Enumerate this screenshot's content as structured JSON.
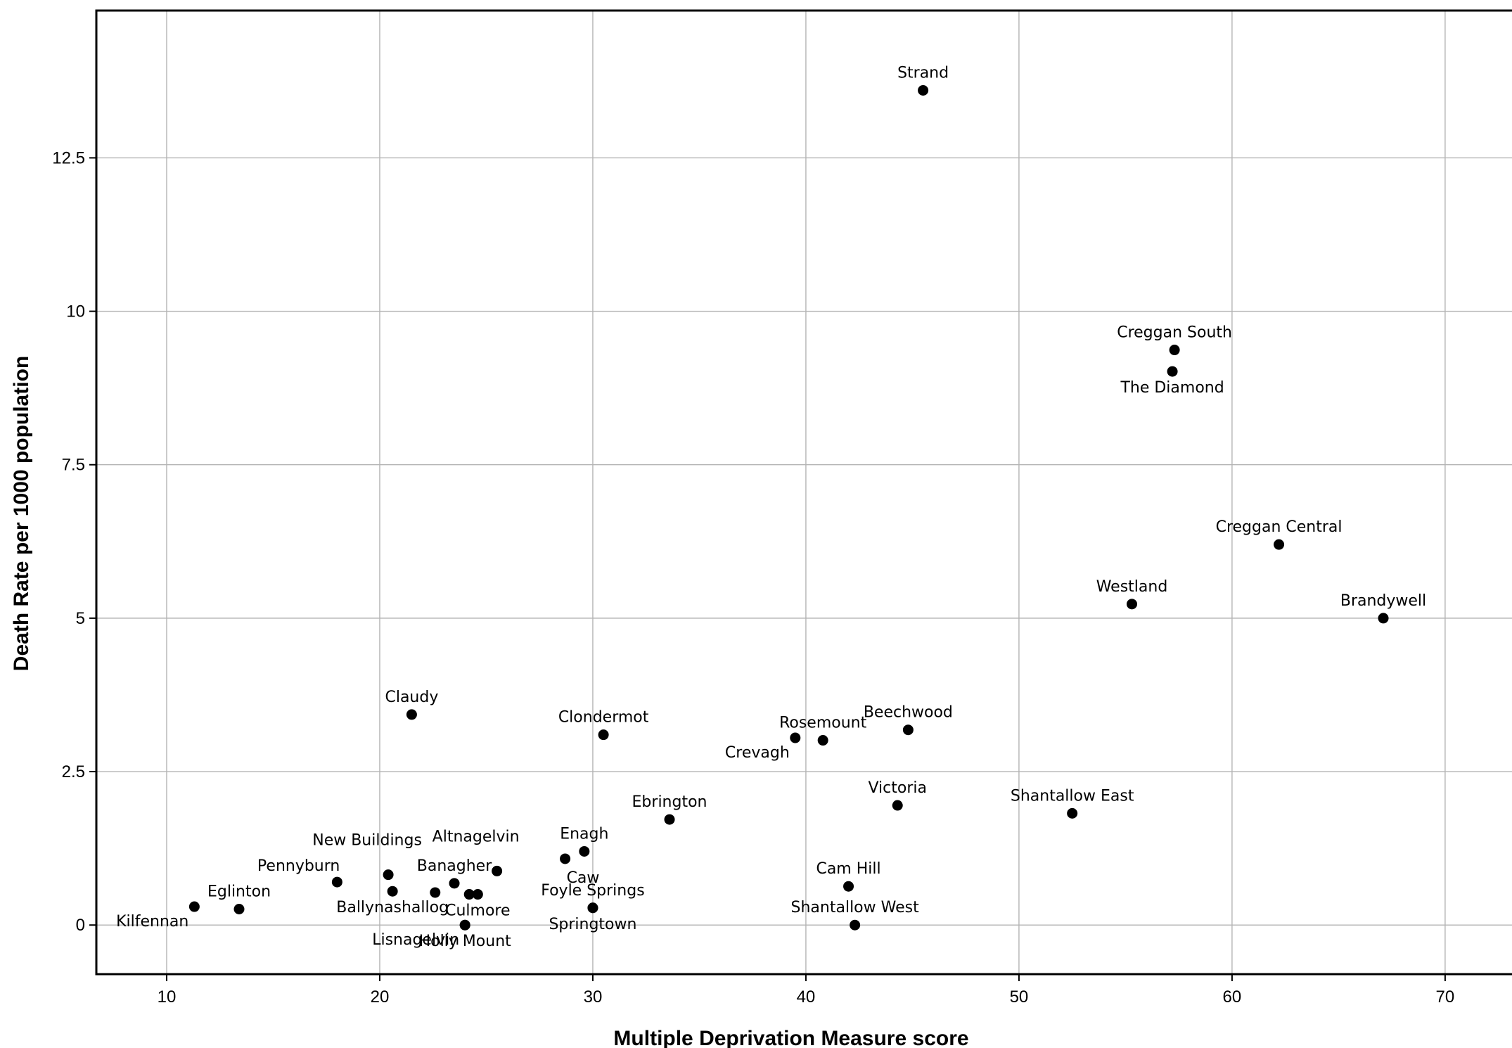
{
  "chart_data": {
    "type": "scatter",
    "xlabel": "Multiple Deprivation Measure score",
    "ylabel": "Death Rate per 1000 population",
    "xlim": [
      6.7,
      73.7
    ],
    "ylim": [
      -0.8,
      14.9
    ],
    "x_ticks": [
      10,
      20,
      30,
      40,
      50,
      60,
      70
    ],
    "y_ticks": [
      0,
      2.5,
      5,
      7.5,
      10,
      12.5
    ],
    "y_tick_labels": [
      "0",
      "2.5",
      "5",
      "7.5",
      "10",
      "12.5"
    ],
    "grid": true,
    "points": [
      {
        "label": "Strand",
        "x": 45.5,
        "y": 13.6,
        "pos": "above"
      },
      {
        "label": "Creggan South",
        "x": 57.3,
        "y": 9.37,
        "pos": "above"
      },
      {
        "label": "The Diamond",
        "x": 57.2,
        "y": 9.02,
        "pos": "below"
      },
      {
        "label": "Creggan Central",
        "x": 62.2,
        "y": 6.2,
        "pos": "above"
      },
      {
        "label": "Westland",
        "x": 55.3,
        "y": 5.23,
        "pos": "above"
      },
      {
        "label": "Brandywell",
        "x": 67.1,
        "y": 5.0,
        "pos": "above"
      },
      {
        "label": "Claudy",
        "x": 21.5,
        "y": 3.43,
        "pos": "above"
      },
      {
        "label": "Clondermot",
        "x": 30.5,
        "y": 3.1,
        "pos": "above"
      },
      {
        "label": "Crevagh",
        "x": 39.5,
        "y": 3.05,
        "pos": "belowleft"
      },
      {
        "label": "Rosemount",
        "x": 40.8,
        "y": 3.01,
        "pos": "above"
      },
      {
        "label": "Beechwood",
        "x": 44.8,
        "y": 3.18,
        "pos": "above"
      },
      {
        "label": "Victoria",
        "x": 44.3,
        "y": 1.95,
        "pos": "above"
      },
      {
        "label": "Shantallow East",
        "x": 52.5,
        "y": 1.82,
        "pos": "above"
      },
      {
        "label": "Ebrington",
        "x": 33.6,
        "y": 1.72,
        "pos": "above"
      },
      {
        "label": "Enagh",
        "x": 29.6,
        "y": 1.2,
        "pos": "above"
      },
      {
        "label": "Caw",
        "x": 28.7,
        "y": 1.08,
        "pos": "belowright"
      },
      {
        "label": "Altnagelvin",
        "x": 25.5,
        "y": 0.88,
        "pos": "aboveup"
      },
      {
        "label": "New Buildings",
        "x": 20.4,
        "y": 0.82,
        "pos": "aboveup"
      },
      {
        "label": "Pennyburn",
        "x": 18.0,
        "y": 0.7,
        "pos": "aboveleft"
      },
      {
        "label": "Banagher",
        "x": 23.5,
        "y": 0.68,
        "pos": "above"
      },
      {
        "label": "Ballynashallog",
        "x": 20.6,
        "y": 0.55,
        "pos": "below"
      },
      {
        "label": "",
        "x": 22.6,
        "y": 0.53,
        "pos": "none"
      },
      {
        "label": "",
        "x": 24.2,
        "y": 0.5,
        "pos": "none"
      },
      {
        "label": "Culmore",
        "x": 24.6,
        "y": 0.5,
        "pos": "below"
      },
      {
        "label": "Foyle Springs",
        "x": 30.0,
        "y": 0.28,
        "pos": "above"
      },
      {
        "label": "Springtown",
        "x": 30.0,
        "y": 0.28,
        "pos": "below"
      },
      {
        "label": "Cam Hill",
        "x": 42.0,
        "y": 0.63,
        "pos": "above"
      },
      {
        "label": "Shantallow West",
        "x": 42.3,
        "y": 0.0,
        "pos": "above"
      },
      {
        "label": "Kilfennan",
        "x": 11.3,
        "y": 0.3,
        "pos": "belowleft"
      },
      {
        "label": "Eglinton",
        "x": 13.4,
        "y": 0.26,
        "pos": "above"
      },
      {
        "label": "Lisnagelvin",
        "x": 24.0,
        "y": 0.0,
        "pos": "belowleft"
      },
      {
        "label": "Holly Mount",
        "x": 24.0,
        "y": 0.0,
        "pos": "below"
      }
    ]
  }
}
